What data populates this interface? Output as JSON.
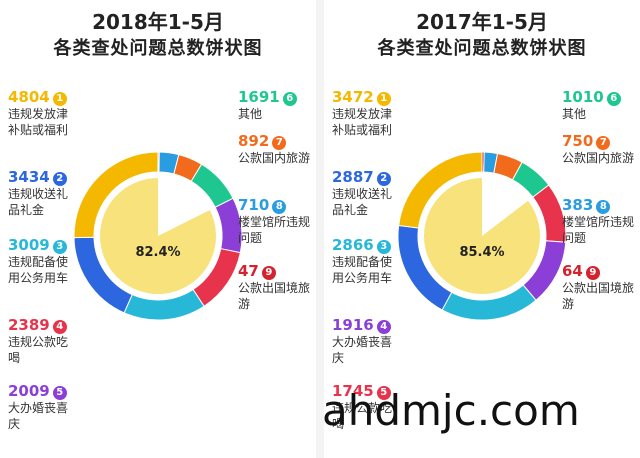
{
  "colors": {
    "accent": [
      "#f5b800",
      "#2d67e0",
      "#27b8d8",
      "#e8334d",
      "#8b3fd6",
      "#1fc790",
      "#f26b1d",
      "#2a9de0",
      "#d3232f"
    ]
  },
  "chart_data": [
    {
      "type": "pie",
      "title": "2018年1-5月",
      "subtitle": "各类查处问题总数饼状图",
      "center_label": "82.4%",
      "segments": [
        {
          "rank": "1",
          "value": 4804,
          "label": "违规发放津补贴或福利",
          "color": "#f5b800"
        },
        {
          "rank": "2",
          "value": 3434,
          "label": "违规收送礼品礼金",
          "color": "#2d67e0"
        },
        {
          "rank": "3",
          "value": 3009,
          "label": "违规配备使用公务用车",
          "color": "#27b8d8"
        },
        {
          "rank": "4",
          "value": 2389,
          "label": "违规公款吃喝",
          "color": "#e8334d"
        },
        {
          "rank": "5",
          "value": 2009,
          "label": "大办婚丧喜庆",
          "color": "#8b3fd6"
        },
        {
          "rank": "6",
          "value": 1691,
          "label": "其他",
          "color": "#1fc790"
        },
        {
          "rank": "7",
          "value": 892,
          "label": "公款国内旅游",
          "color": "#f26b1d"
        },
        {
          "rank": "8",
          "value": 710,
          "label": "楼堂馆所违规问题",
          "color": "#2a9de0"
        },
        {
          "rank": "9",
          "value": 47,
          "label": "公款出国境旅游",
          "color": "#d3232f"
        }
      ]
    },
    {
      "type": "pie",
      "title": "2017年1-5月",
      "subtitle": "各类查处问题总数饼状图",
      "center_label": "85.4%",
      "segments": [
        {
          "rank": "1",
          "value": 3472,
          "label": "违规发放津补贴或福利",
          "color": "#f5b800"
        },
        {
          "rank": "2",
          "value": 2887,
          "label": "违规收送礼品礼金",
          "color": "#2d67e0"
        },
        {
          "rank": "3",
          "value": 2866,
          "label": "违规配备使用公务用车",
          "color": "#27b8d8"
        },
        {
          "rank": "4",
          "value": 1916,
          "label": "大办婚丧喜庆",
          "color": "#8b3fd6"
        },
        {
          "rank": "5",
          "value": 1745,
          "label": "违规公款吃喝",
          "color": "#e8334d"
        },
        {
          "rank": "6",
          "value": 1010,
          "label": "其他",
          "color": "#1fc790"
        },
        {
          "rank": "7",
          "value": 750,
          "label": "公款国内旅游",
          "color": "#f26b1d"
        },
        {
          "rank": "8",
          "value": 383,
          "label": "楼堂馆所违规问题",
          "color": "#2a9de0"
        },
        {
          "rank": "9",
          "value": 64,
          "label": "公款出国境旅游",
          "color": "#d3232f"
        }
      ]
    }
  ],
  "watermark": "ahdmjc.com"
}
